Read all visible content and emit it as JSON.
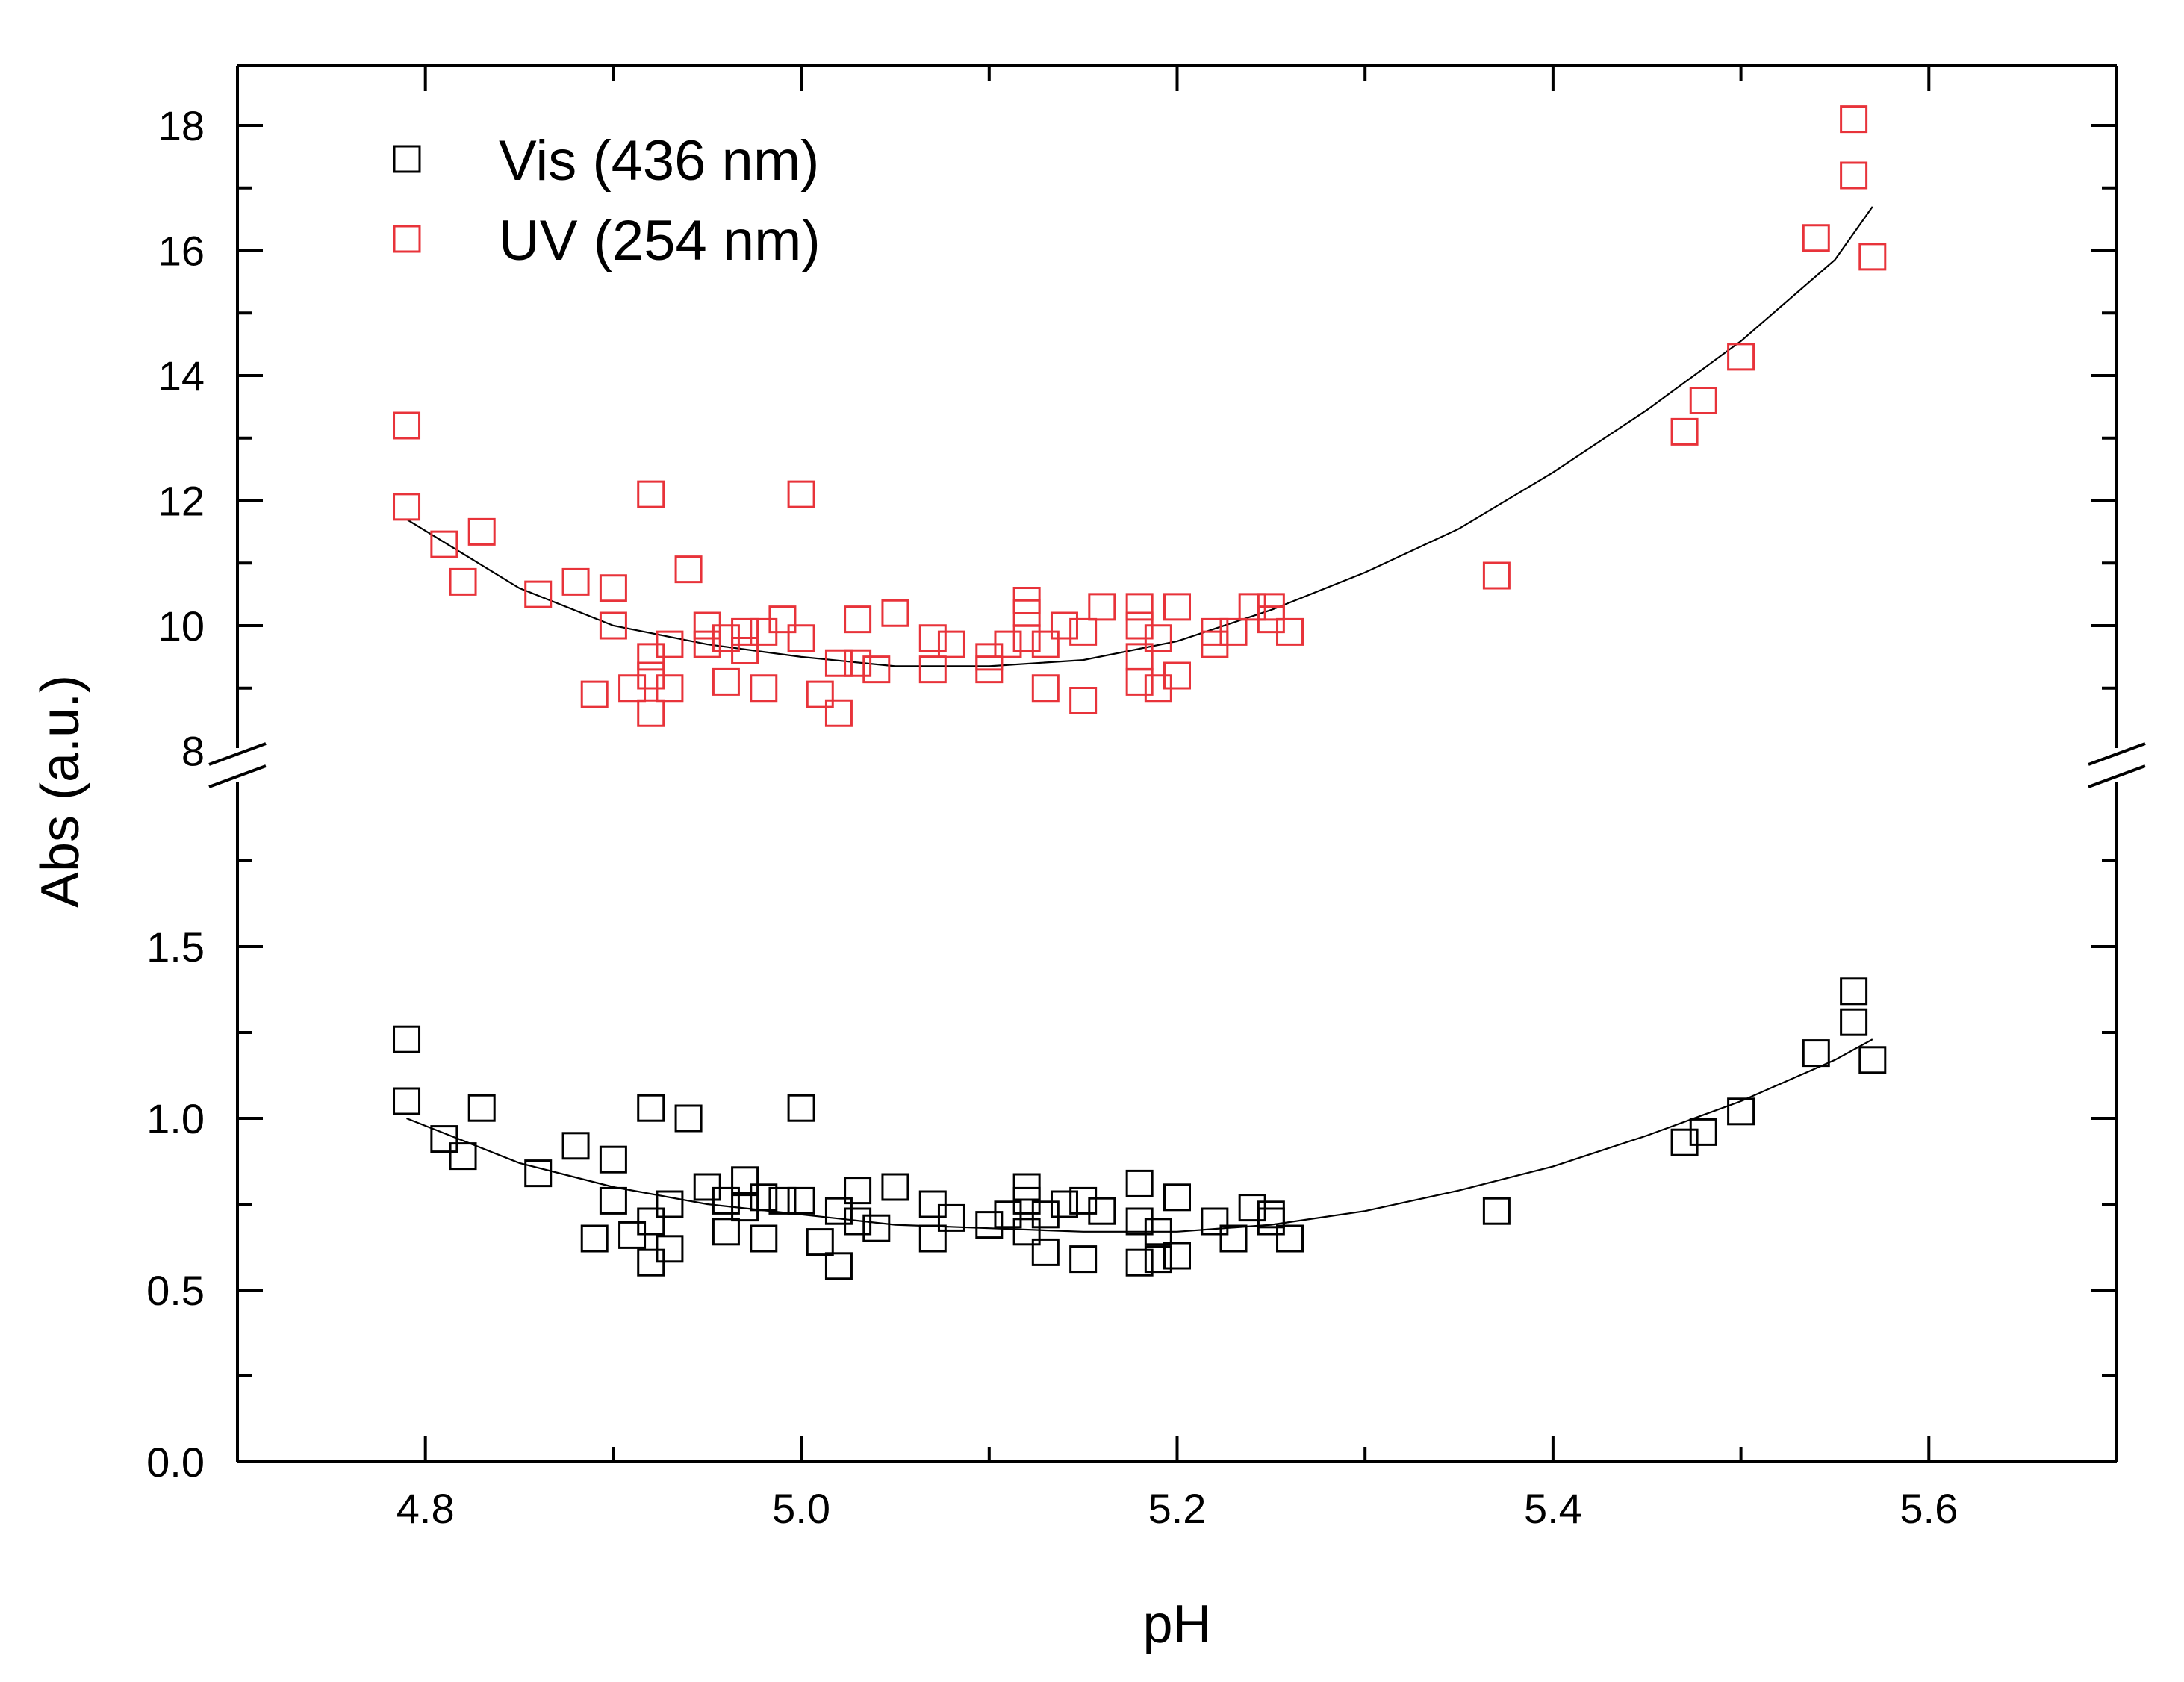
{
  "chart_data": {
    "type": "scatter",
    "xlabel": "pH",
    "ylabel": "Abs (a.u.)",
    "xlim": [
      4.7,
      5.7
    ],
    "x_ticks": [
      {
        "value": 4.8,
        "label": "4.8"
      },
      {
        "value": 5.0,
        "label": "5.0"
      },
      {
        "value": 5.2,
        "label": "5.2"
      },
      {
        "value": 5.4,
        "label": "5.4"
      },
      {
        "value": 5.6,
        "label": "5.6"
      }
    ],
    "y_axis_break": true,
    "y_lower_range": [
      0,
      2
    ],
    "y_upper_range": [
      8,
      19
    ],
    "y_ticks_lower": [
      {
        "value": 0.0,
        "label": "0.0"
      },
      {
        "value": 0.5,
        "label": "0.5"
      },
      {
        "value": 1.0,
        "label": "1.0"
      },
      {
        "value": 1.5,
        "label": "1.5"
      }
    ],
    "y_ticks_upper": [
      {
        "value": 8,
        "label": "8"
      },
      {
        "value": 10,
        "label": "10"
      },
      {
        "value": 12,
        "label": "12"
      },
      {
        "value": 14,
        "label": "14"
      },
      {
        "value": 16,
        "label": "16"
      },
      {
        "value": 18,
        "label": "18"
      }
    ],
    "legend_position": "top-left",
    "series": [
      {
        "name": "Vis (436 nm)",
        "color": "#000000",
        "marker": "open-square",
        "segment": "lower",
        "points": [
          [
            4.79,
            1.23
          ],
          [
            4.79,
            1.05
          ],
          [
            4.81,
            0.94
          ],
          [
            4.82,
            0.89
          ],
          [
            4.83,
            1.03
          ],
          [
            4.86,
            0.84
          ],
          [
            4.88,
            0.92
          ],
          [
            4.89,
            0.65
          ],
          [
            4.9,
            0.88
          ],
          [
            4.9,
            0.76
          ],
          [
            4.91,
            0.66
          ],
          [
            4.92,
            1.03
          ],
          [
            4.92,
            0.7
          ],
          [
            4.92,
            0.58
          ],
          [
            4.93,
            0.75
          ],
          [
            4.93,
            0.62
          ],
          [
            4.94,
            1.0
          ],
          [
            4.95,
            0.8
          ],
          [
            4.96,
            0.76
          ],
          [
            4.96,
            0.67
          ],
          [
            4.97,
            0.82
          ],
          [
            4.97,
            0.74
          ],
          [
            4.98,
            0.77
          ],
          [
            4.98,
            0.65
          ],
          [
            4.99,
            0.76
          ],
          [
            5.0,
            1.03
          ],
          [
            5.0,
            0.76
          ],
          [
            5.01,
            0.64
          ],
          [
            5.02,
            0.73
          ],
          [
            5.02,
            0.57
          ],
          [
            5.03,
            0.79
          ],
          [
            5.03,
            0.7
          ],
          [
            5.04,
            0.68
          ],
          [
            5.05,
            0.8
          ],
          [
            5.07,
            0.75
          ],
          [
            5.07,
            0.65
          ],
          [
            5.08,
            0.71
          ],
          [
            5.1,
            0.69
          ],
          [
            5.11,
            0.72
          ],
          [
            5.12,
            0.8
          ],
          [
            5.12,
            0.76
          ],
          [
            5.12,
            0.67
          ],
          [
            5.13,
            0.72
          ],
          [
            5.13,
            0.61
          ],
          [
            5.14,
            0.75
          ],
          [
            5.15,
            0.76
          ],
          [
            5.15,
            0.59
          ],
          [
            5.16,
            0.73
          ],
          [
            5.18,
            0.81
          ],
          [
            5.18,
            0.7
          ],
          [
            5.18,
            0.58
          ],
          [
            5.19,
            0.67
          ],
          [
            5.19,
            0.59
          ],
          [
            5.2,
            0.77
          ],
          [
            5.2,
            0.6
          ],
          [
            5.22,
            0.7
          ],
          [
            5.23,
            0.65
          ],
          [
            5.24,
            0.74
          ],
          [
            5.25,
            0.72
          ],
          [
            5.25,
            0.7
          ],
          [
            5.26,
            0.65
          ],
          [
            5.37,
            0.73
          ],
          [
            5.47,
            0.93
          ],
          [
            5.48,
            0.96
          ],
          [
            5.5,
            1.02
          ],
          [
            5.54,
            1.19
          ],
          [
            5.56,
            1.37
          ],
          [
            5.56,
            1.28
          ],
          [
            5.57,
            1.17
          ]
        ],
        "fit": [
          [
            4.79,
            1.0
          ],
          [
            4.85,
            0.87
          ],
          [
            4.9,
            0.8
          ],
          [
            4.95,
            0.75
          ],
          [
            5.0,
            0.72
          ],
          [
            5.05,
            0.69
          ],
          [
            5.1,
            0.68
          ],
          [
            5.15,
            0.67
          ],
          [
            5.2,
            0.67
          ],
          [
            5.25,
            0.69
          ],
          [
            5.3,
            0.73
          ],
          [
            5.35,
            0.79
          ],
          [
            5.4,
            0.86
          ],
          [
            5.45,
            0.95
          ],
          [
            5.5,
            1.05
          ],
          [
            5.55,
            1.17
          ],
          [
            5.57,
            1.23
          ]
        ]
      },
      {
        "name": "UV (254 nm)",
        "color": "#e8333a",
        "marker": "open-square",
        "segment": "upper",
        "points": [
          [
            4.79,
            13.2
          ],
          [
            4.79,
            11.9
          ],
          [
            4.81,
            11.3
          ],
          [
            4.82,
            10.7
          ],
          [
            4.83,
            11.5
          ],
          [
            4.86,
            10.5
          ],
          [
            4.88,
            10.7
          ],
          [
            4.89,
            8.9
          ],
          [
            4.9,
            10.6
          ],
          [
            4.9,
            10.0
          ],
          [
            4.91,
            9.0
          ],
          [
            4.92,
            12.1
          ],
          [
            4.92,
            9.5
          ],
          [
            4.92,
            9.2
          ],
          [
            4.92,
            8.6
          ],
          [
            4.93,
            9.7
          ],
          [
            4.93,
            9.0
          ],
          [
            4.94,
            10.9
          ],
          [
            4.95,
            10.0
          ],
          [
            4.95,
            9.7
          ],
          [
            4.96,
            9.8
          ],
          [
            4.96,
            9.1
          ],
          [
            4.97,
            9.6
          ],
          [
            4.97,
            9.9
          ],
          [
            4.98,
            9.9
          ],
          [
            4.98,
            9.0
          ],
          [
            4.99,
            10.1
          ],
          [
            5.0,
            12.1
          ],
          [
            5.0,
            9.8
          ],
          [
            5.01,
            8.9
          ],
          [
            5.02,
            9.4
          ],
          [
            5.02,
            8.6
          ],
          [
            5.03,
            10.1
          ],
          [
            5.03,
            9.4
          ],
          [
            5.04,
            9.3
          ],
          [
            5.05,
            10.2
          ],
          [
            5.07,
            9.8
          ],
          [
            5.07,
            9.3
          ],
          [
            5.08,
            9.7
          ],
          [
            5.1,
            9.5
          ],
          [
            5.1,
            9.3
          ],
          [
            5.11,
            9.7
          ],
          [
            5.12,
            10.4
          ],
          [
            5.12,
            10.2
          ],
          [
            5.12,
            9.8
          ],
          [
            5.13,
            9.7
          ],
          [
            5.13,
            9.0
          ],
          [
            5.14,
            10.0
          ],
          [
            5.15,
            9.9
          ],
          [
            5.15,
            8.8
          ],
          [
            5.16,
            10.3
          ],
          [
            5.18,
            10.3
          ],
          [
            5.18,
            10.0
          ],
          [
            5.18,
            9.5
          ],
          [
            5.18,
            9.1
          ],
          [
            5.19,
            9.8
          ],
          [
            5.19,
            9.0
          ],
          [
            5.2,
            10.3
          ],
          [
            5.2,
            9.2
          ],
          [
            5.22,
            9.9
          ],
          [
            5.22,
            9.7
          ],
          [
            5.23,
            9.9
          ],
          [
            5.24,
            10.3
          ],
          [
            5.25,
            10.3
          ],
          [
            5.25,
            10.1
          ],
          [
            5.26,
            9.9
          ],
          [
            5.37,
            10.8
          ],
          [
            5.47,
            13.1
          ],
          [
            5.48,
            13.6
          ],
          [
            5.5,
            14.3
          ],
          [
            5.54,
            16.2
          ],
          [
            5.56,
            18.1
          ],
          [
            5.56,
            17.2
          ],
          [
            5.57,
            15.9
          ]
        ],
        "fit": [
          [
            4.79,
            11.7
          ],
          [
            4.85,
            10.6
          ],
          [
            4.9,
            10.0
          ],
          [
            4.95,
            9.7
          ],
          [
            5.0,
            9.5
          ],
          [
            5.05,
            9.35
          ],
          [
            5.1,
            9.35
          ],
          [
            5.15,
            9.45
          ],
          [
            5.2,
            9.75
          ],
          [
            5.25,
            10.25
          ],
          [
            5.3,
            10.85
          ],
          [
            5.35,
            11.55
          ],
          [
            5.4,
            12.45
          ],
          [
            5.45,
            13.45
          ],
          [
            5.5,
            14.55
          ],
          [
            5.55,
            15.85
          ],
          [
            5.57,
            16.7
          ]
        ]
      }
    ]
  }
}
